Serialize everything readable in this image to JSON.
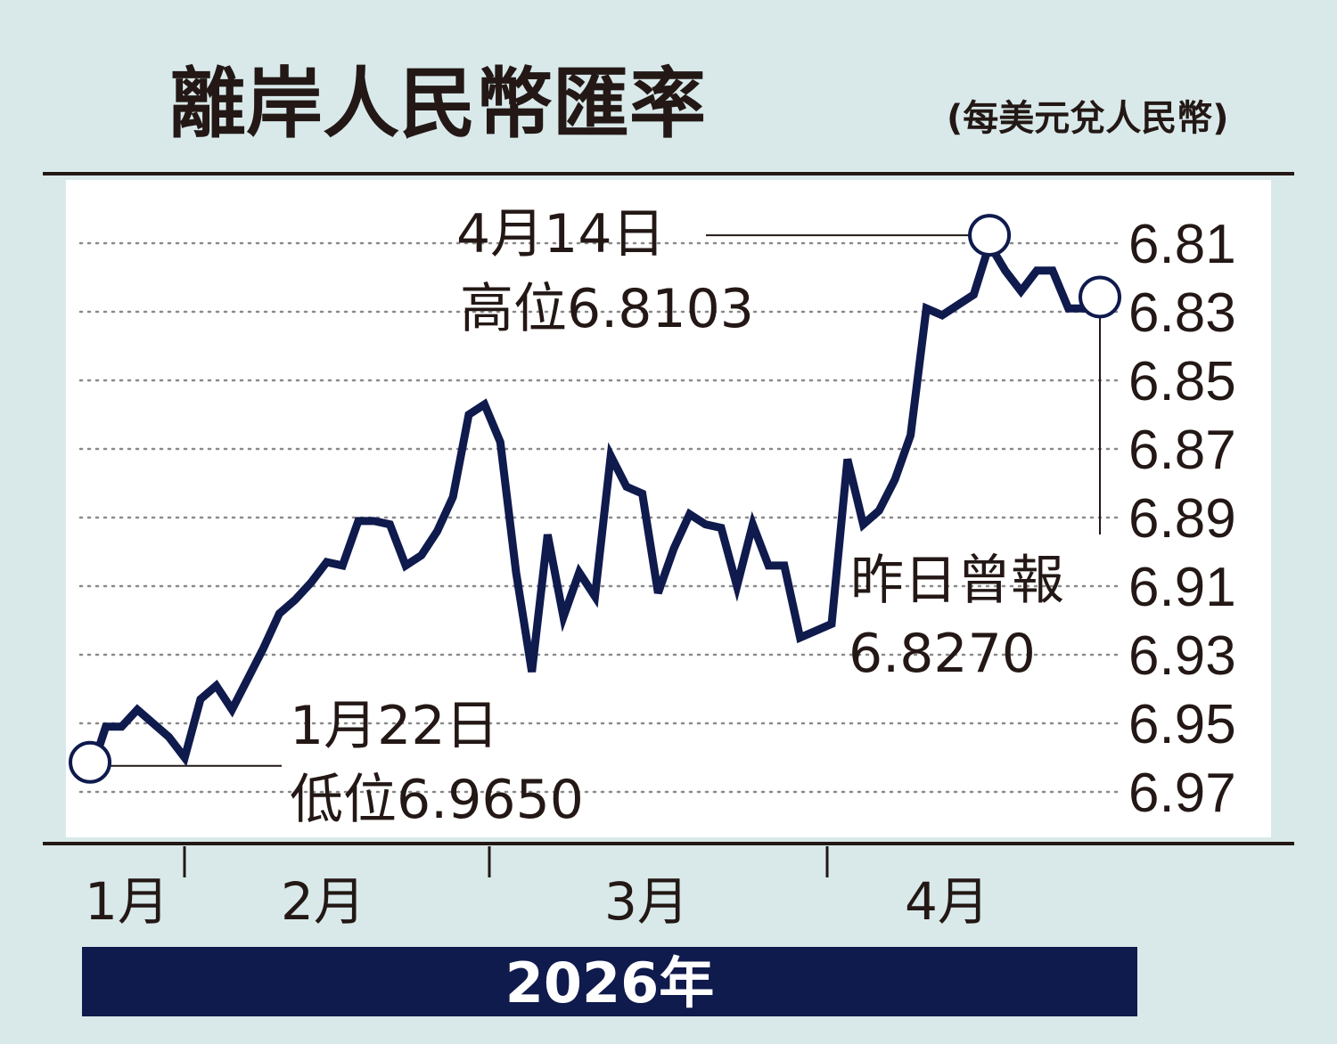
{
  "header": {
    "title": "離岸人民幣匯率",
    "unit": "(每美元兌人民幣)"
  },
  "chart_data": {
    "type": "line",
    "title": "離岸人民幣匯率",
    "unit_note": "(每美元兌人民幣)",
    "y_inverted": true,
    "ylim": [
      6.802,
      6.97
    ],
    "yticks": [
      "6.81",
      "6.83",
      "6.85",
      "6.87",
      "6.89",
      "6.91",
      "6.93",
      "6.95",
      "6.97"
    ],
    "months": [
      "1月",
      "2月",
      "3月",
      "4月"
    ],
    "year_label": "2026年",
    "series": [
      {
        "values": [
          6.965,
          6.951,
          6.951,
          6.946,
          6.95,
          6.954,
          6.96,
          6.943,
          6.939,
          6.946,
          6.937,
          6.928,
          6.918,
          6.914,
          6.909,
          6.903,
          6.904,
          6.891,
          6.891,
          6.892,
          6.904,
          6.901,
          6.894,
          6.884,
          6.86,
          6.857,
          6.868,
          6.906,
          6.935,
          6.895,
          6.919,
          6.906,
          6.913,
          6.872,
          6.881,
          6.883,
          6.912,
          6.899,
          6.889,
          6.892,
          6.893,
          6.91,
          6.892,
          6.904,
          6.904,
          6.925,
          6.923,
          6.921,
          6.873,
          6.892,
          6.888,
          6.879,
          6.866,
          6.829,
          6.831,
          6.828,
          6.825,
          6.8103,
          6.818,
          6.824,
          6.818,
          6.818,
          6.829,
          6.829,
          6.827
        ]
      }
    ],
    "annotations": {
      "low": {
        "index": 0,
        "date": "1月22日",
        "label": "低位6.9650"
      },
      "high": {
        "index": 57,
        "date": "4月14日",
        "label": "高位6.8103"
      },
      "last": {
        "index": 64,
        "date": "昨日曾報",
        "label": "6.8270"
      }
    }
  }
}
